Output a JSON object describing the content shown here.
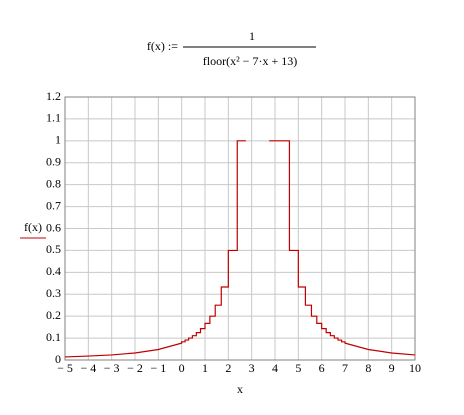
{
  "chart_data": {
    "type": "line",
    "title_lhs": "f(x) :=",
    "title_numerator": "1",
    "title_denominator": "floor(x² − 7·x + 13)",
    "x_label": "x",
    "y_label": "f(x)",
    "x": [
      -5,
      -4,
      -3,
      -2,
      -1,
      0,
      0,
      0.146,
      0.146,
      0.298,
      0.298,
      0.459,
      0.459,
      0.628,
      0.628,
      0.807,
      0.807,
      1,
      1,
      1.209,
      1.209,
      1.438,
      1.438,
      1.697,
      1.697,
      2,
      2,
      2.382,
      2.382,
      2.75,
      null,
      3.75,
      4.618,
      4.618,
      5,
      5,
      5.303,
      5.303,
      5.562,
      5.562,
      5.791,
      5.791,
      6,
      6,
      6.193,
      6.193,
      6.372,
      6.372,
      6.541,
      6.541,
      6.702,
      6.702,
      6.854,
      6.854,
      7,
      7,
      8,
      9,
      10
    ],
    "series": [
      {
        "name": "f(x)",
        "color": "#c00000",
        "values": [
          0.014,
          0.018,
          0.023,
          0.032,
          0.048,
          0.077,
          0.083,
          0.083,
          0.091,
          0.091,
          0.1,
          0.1,
          0.111,
          0.111,
          0.125,
          0.125,
          0.143,
          0.143,
          0.167,
          0.167,
          0.2,
          0.2,
          0.25,
          0.25,
          0.333,
          0.333,
          0.5,
          0.5,
          1,
          1,
          null,
          1,
          1,
          0.5,
          0.5,
          0.333,
          0.333,
          0.25,
          0.25,
          0.2,
          0.2,
          0.167,
          0.167,
          0.143,
          0.143,
          0.125,
          0.125,
          0.111,
          0.111,
          0.1,
          0.1,
          0.091,
          0.091,
          0.083,
          0.083,
          0.077,
          0.048,
          0.032,
          0.023
        ]
      }
    ],
    "xlim": [
      -5,
      10
    ],
    "xticks": [
      {
        "value": -5,
        "label": "− 5"
      },
      {
        "value": -4,
        "label": "− 4"
      },
      {
        "value": -3,
        "label": "− 3"
      },
      {
        "value": -2,
        "label": "− 2"
      },
      {
        "value": -1,
        "label": "− 1"
      },
      0,
      1,
      2,
      3,
      4,
      5,
      6,
      7,
      8,
      9,
      10
    ],
    "ylim": [
      0,
      1.2
    ],
    "yticks": [
      0,
      0.1,
      0.2,
      0.3,
      0.4,
      0.5,
      0.6,
      0.7,
      0.8,
      0.9,
      1,
      1.1,
      1.2
    ],
    "grid": true
  }
}
